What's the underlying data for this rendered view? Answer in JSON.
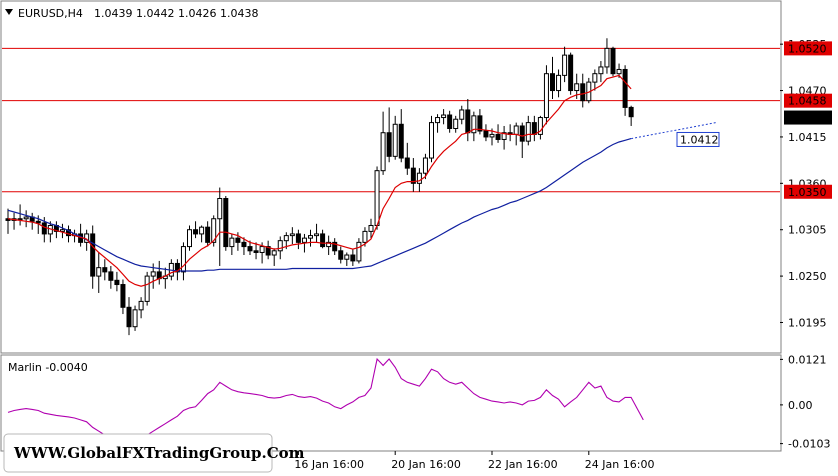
{
  "colors": {
    "background": "#ffffff",
    "bull_candle": "#ffffff",
    "bear_candle": "#000000",
    "wick": "#000000",
    "fast_ma": "#dd0000",
    "slow_ma": "#1020a0",
    "levels": "#e00000",
    "osc": "#b000b0",
    "grid_border": "#808080",
    "projection": "#2040d0"
  },
  "header": {
    "dropdown_icon": "triangle-down-icon",
    "symbol": "EURUSD,H4",
    "ohlc": "1.0439 1.0442 1.0426 1.0438"
  },
  "watermark": {
    "text": "WWW.GlobalFXTradingGroup.Com"
  },
  "oscillator": {
    "label": "Marlin -0.0040"
  },
  "chart_data": [
    {
      "type": "candlestick",
      "title": "EURUSD,H4",
      "ylim": [
        1.016,
        1.0575
      ],
      "y_ticks": [
        1.0195,
        1.025,
        1.0305,
        1.036,
        1.0415,
        1.047,
        1.0525
      ],
      "y_tick_labels": [
        "1.0195",
        "1.0250",
        "1.0305",
        "1.0360",
        "1.0415",
        "1.0470",
        "1.0525"
      ],
      "x_tick_labels": [
        {
          "index": 48,
          "label": "16 Jan 16:00"
        },
        {
          "index": 64,
          "label": "20 Jan 16:00"
        },
        {
          "index": 80,
          "label": "22 Jan 16:00"
        },
        {
          "index": 96,
          "label": "24 Jan 16:00"
        }
      ],
      "horizontal_levels": [
        {
          "value": 1.052,
          "label": "1.0520"
        },
        {
          "value": 1.0458,
          "label": "1.0458"
        },
        {
          "value": 1.035,
          "label": "1.0350"
        }
      ],
      "current_price": {
        "value": 1.0438,
        "label": "1.0438"
      },
      "slow_ma_projection": {
        "from_index": 106,
        "to_index": 117,
        "value_end": 1.0432,
        "label": "1.0412",
        "label_value": 1.0412
      },
      "candles": [
        [
          1.0318,
          1.033,
          1.03,
          1.0316
        ],
        [
          1.0316,
          1.0325,
          1.0305,
          1.0318
        ],
        [
          1.0318,
          1.0335,
          1.031,
          1.0318
        ],
        [
          1.0318,
          1.0328,
          1.0308,
          1.032
        ],
        [
          1.032,
          1.0325,
          1.0305,
          1.0315
        ],
        [
          1.0315,
          1.0322,
          1.03,
          1.0313
        ],
        [
          1.0313,
          1.032,
          1.029,
          1.03
        ],
        [
          1.03,
          1.0315,
          1.029,
          1.031
        ],
        [
          1.031,
          1.0315,
          1.0295,
          1.0303
        ],
        [
          1.0303,
          1.0312,
          1.0295,
          1.0305
        ],
        [
          1.0305,
          1.031,
          1.029,
          1.0298
        ],
        [
          1.0298,
          1.0305,
          1.029,
          1.03
        ],
        [
          1.03,
          1.0312,
          1.0285,
          1.029
        ],
        [
          1.029,
          1.0305,
          1.028,
          1.03
        ],
        [
          1.03,
          1.031,
          1.0235,
          1.025
        ],
        [
          1.025,
          1.0278,
          1.023,
          1.026
        ],
        [
          1.026,
          1.027,
          1.0245,
          1.0255
        ],
        [
          1.0255,
          1.0262,
          1.0235,
          1.0245
        ],
        [
          1.0245,
          1.0255,
          1.0232,
          1.024
        ],
        [
          1.024,
          1.0246,
          1.0205,
          1.0213
        ],
        [
          1.0213,
          1.0225,
          1.018,
          1.019
        ],
        [
          1.019,
          1.0215,
          1.0185,
          1.021
        ],
        [
          1.021,
          1.0225,
          1.02,
          1.022
        ],
        [
          1.022,
          1.0255,
          1.0215,
          1.025
        ],
        [
          1.025,
          1.0265,
          1.0235,
          1.0255
        ],
        [
          1.0255,
          1.0268,
          1.024,
          1.0247
        ],
        [
          1.0247,
          1.026,
          1.0235,
          1.025
        ],
        [
          1.025,
          1.027,
          1.0245,
          1.0265
        ],
        [
          1.0265,
          1.027,
          1.0245,
          1.0255
        ],
        [
          1.0255,
          1.029,
          1.0245,
          1.0285
        ],
        [
          1.0285,
          1.031,
          1.028,
          1.0305
        ],
        [
          1.0305,
          1.0315,
          1.0295,
          1.03
        ],
        [
          1.03,
          1.031,
          1.029,
          1.0308
        ],
        [
          1.0308,
          1.0315,
          1.0285,
          1.029
        ],
        [
          1.029,
          1.0322,
          1.0285,
          1.0318
        ],
        [
          1.0318,
          1.0355,
          1.0262,
          1.0342
        ],
        [
          1.0342,
          1.0345,
          1.028,
          1.0285
        ],
        [
          1.0285,
          1.03,
          1.0275,
          1.0295
        ],
        [
          1.0295,
          1.0302,
          1.028,
          1.029
        ],
        [
          1.029,
          1.0296,
          1.0275,
          1.0285
        ],
        [
          1.0285,
          1.0292,
          1.0275,
          1.028
        ],
        [
          1.028,
          1.029,
          1.027,
          1.0278
        ],
        [
          1.0278,
          1.029,
          1.0265,
          1.0285
        ],
        [
          1.0285,
          1.0292,
          1.027,
          1.0275
        ],
        [
          1.0275,
          1.0283,
          1.0262,
          1.028
        ],
        [
          1.028,
          1.0297,
          1.027,
          1.0292
        ],
        [
          1.0292,
          1.0302,
          1.0282,
          1.0298
        ],
        [
          1.0298,
          1.0308,
          1.0288,
          1.03
        ],
        [
          1.03,
          1.0305,
          1.0282,
          1.029
        ],
        [
          1.029,
          1.03,
          1.0278,
          1.0295
        ],
        [
          1.0295,
          1.0305,
          1.0285,
          1.0298
        ],
        [
          1.0298,
          1.0312,
          1.029,
          1.03
        ],
        [
          1.03,
          1.0305,
          1.0283,
          1.0285
        ],
        [
          1.0285,
          1.0298,
          1.0275,
          1.029
        ],
        [
          1.029,
          1.0295,
          1.0275,
          1.028
        ],
        [
          1.028,
          1.0285,
          1.0265,
          1.027
        ],
        [
          1.027,
          1.0278,
          1.0262,
          1.0275
        ],
        [
          1.0275,
          1.0282,
          1.0262,
          1.0268
        ],
        [
          1.0268,
          1.0295,
          1.0265,
          1.029
        ],
        [
          1.029,
          1.0308,
          1.0285,
          1.0303
        ],
        [
          1.0303,
          1.0318,
          1.0295,
          1.031
        ],
        [
          1.031,
          1.038,
          1.0305,
          1.0375
        ],
        [
          1.0375,
          1.0445,
          1.037,
          1.042
        ],
        [
          1.042,
          1.045,
          1.0385,
          1.0392
        ],
        [
          1.0392,
          1.044,
          1.0388,
          1.043
        ],
        [
          1.043,
          1.0448,
          1.0385,
          1.039
        ],
        [
          1.039,
          1.0408,
          1.037,
          1.0378
        ],
        [
          1.0378,
          1.039,
          1.035,
          1.036
        ],
        [
          1.036,
          1.0378,
          1.035,
          1.0372
        ],
        [
          1.0372,
          1.0395,
          1.0365,
          1.039
        ],
        [
          1.039,
          1.044,
          1.0385,
          1.0432
        ],
        [
          1.0432,
          1.0442,
          1.042,
          1.0438
        ],
        [
          1.0438,
          1.0448,
          1.043,
          1.0441
        ],
        [
          1.0441,
          1.0446,
          1.042,
          1.0425
        ],
        [
          1.0425,
          1.044,
          1.042,
          1.0436
        ],
        [
          1.0436,
          1.0452,
          1.043,
          1.0447
        ],
        [
          1.0447,
          1.046,
          1.041,
          1.042
        ],
        [
          1.042,
          1.0445,
          1.041,
          1.044
        ],
        [
          1.044,
          1.0448,
          1.0418,
          1.0422
        ],
        [
          1.0422,
          1.043,
          1.041,
          1.0415
        ],
        [
          1.0415,
          1.0425,
          1.0405,
          1.0418
        ],
        [
          1.0418,
          1.043,
          1.0408,
          1.0412
        ],
        [
          1.0412,
          1.0428,
          1.04,
          1.042
        ],
        [
          1.042,
          1.043,
          1.041,
          1.0418
        ],
        [
          1.0418,
          1.0432,
          1.0405,
          1.0428
        ],
        [
          1.0428,
          1.0432,
          1.039,
          1.041
        ],
        [
          1.041,
          1.044,
          1.0405,
          1.0432
        ],
        [
          1.0432,
          1.044,
          1.041,
          1.0418
        ],
        [
          1.0418,
          1.044,
          1.0412,
          1.0438
        ],
        [
          1.0438,
          1.05,
          1.043,
          1.049
        ],
        [
          1.049,
          1.051,
          1.046,
          1.047
        ],
        [
          1.047,
          1.0495,
          1.0462,
          1.0488
        ],
        [
          1.0488,
          1.0522,
          1.048,
          1.0512
        ],
        [
          1.0512,
          1.0515,
          1.0465,
          1.047
        ],
        [
          1.047,
          1.049,
          1.046,
          1.0478
        ],
        [
          1.0478,
          1.049,
          1.045,
          1.0458
        ],
        [
          1.0458,
          1.0485,
          1.0455,
          1.048
        ],
        [
          1.048,
          1.0495,
          1.047,
          1.049
        ],
        [
          1.049,
          1.0505,
          1.048,
          1.0498
        ],
        [
          1.0498,
          1.0532,
          1.049,
          1.052
        ],
        [
          1.052,
          1.0522,
          1.0487,
          1.049
        ],
        [
          1.049,
          1.0502,
          1.0485,
          1.0495
        ],
        [
          1.0495,
          1.05,
          1.044,
          1.045
        ],
        [
          1.045,
          1.0452,
          1.0428,
          1.0439
        ]
      ],
      "fast_ma": [
        1.0318,
        1.0317,
        1.0316,
        1.0315,
        1.0314,
        1.0312,
        1.0308,
        1.0306,
        1.0304,
        1.0302,
        1.03,
        1.0298,
        1.0296,
        1.0294,
        1.0285,
        1.0278,
        1.0272,
        1.0266,
        1.026,
        1.0252,
        1.0244,
        1.024,
        1.0238,
        1.024,
        1.0244,
        1.0247,
        1.025,
        1.0254,
        1.0256,
        1.0262,
        1.027,
        1.0276,
        1.0282,
        1.0286,
        1.0292,
        1.0302,
        1.0302,
        1.03,
        1.0298,
        1.0294,
        1.029,
        1.0288,
        1.0286,
        1.0284,
        1.0282,
        1.0283,
        1.0285,
        1.0287,
        1.0288,
        1.0289,
        1.029,
        1.029,
        1.0289,
        1.0289,
        1.0288,
        1.0286,
        1.0284,
        1.0282,
        1.0284,
        1.0288,
        1.0294,
        1.031,
        1.033,
        1.0342,
        1.0355,
        1.036,
        1.0362,
        1.0362,
        1.0363,
        1.0368,
        1.038,
        1.039,
        1.0398,
        1.0404,
        1.041,
        1.0418,
        1.042,
        1.0424,
        1.0424,
        1.0423,
        1.0422,
        1.042,
        1.0419,
        1.0418,
        1.0418,
        1.0416,
        1.0418,
        1.0418,
        1.0422,
        1.0432,
        1.044,
        1.0448,
        1.0458,
        1.0462,
        1.0465,
        1.0466,
        1.0468,
        1.0472,
        1.0476,
        1.0484,
        1.0486,
        1.0488,
        1.048,
        1.0472
      ],
      "slow_ma": [
        1.0328,
        1.0326,
        1.0324,
        1.0322,
        1.032,
        1.0318,
        1.0315,
        1.0312,
        1.031,
        1.0307,
        1.0304,
        1.03,
        1.0297,
        1.0293,
        1.0289,
        1.0285,
        1.0281,
        1.0277,
        1.0273,
        1.027,
        1.0267,
        1.0264,
        1.0262,
        1.0261,
        1.026,
        1.0259,
        1.0258,
        1.0257,
        1.0256,
        1.0256,
        1.0256,
        1.0256,
        1.0256,
        1.0257,
        1.0257,
        1.0258,
        1.0258,
        1.0258,
        1.0258,
        1.0258,
        1.0258,
        1.0258,
        1.0258,
        1.0258,
        1.0258,
        1.0258,
        1.0258,
        1.0259,
        1.0259,
        1.0259,
        1.0259,
        1.0259,
        1.0259,
        1.0259,
        1.0259,
        1.0259,
        1.0259,
        1.0259,
        1.026,
        1.0261,
        1.0262,
        1.0265,
        1.0268,
        1.0271,
        1.0274,
        1.0277,
        1.028,
        1.0283,
        1.0286,
        1.0289,
        1.0293,
        1.0297,
        1.0301,
        1.0305,
        1.0309,
        1.0313,
        1.0316,
        1.032,
        1.0323,
        1.0326,
        1.0329,
        1.0331,
        1.0334,
        1.0337,
        1.0339,
        1.0342,
        1.0345,
        1.0348,
        1.0351,
        1.0355,
        1.036,
        1.0365,
        1.037,
        1.0375,
        1.038,
        1.0385,
        1.0389,
        1.0393,
        1.0397,
        1.0402,
        1.0406,
        1.0409,
        1.0411,
        1.0413
      ]
    },
    {
      "type": "line",
      "title": "Marlin -0.0040",
      "ylim": [
        -0.012,
        0.013
      ],
      "y_ticks": [
        0.0121,
        0.0,
        -0.0103
      ],
      "y_tick_labels": [
        "0.0121",
        "0.00",
        "-0.0103"
      ],
      "series": [
        {
          "name": "Marlin",
          "values": [
            -0.002,
            -0.0015,
            -0.0012,
            -0.001,
            -0.0012,
            -0.0015,
            -0.0022,
            -0.0025,
            -0.0028,
            -0.003,
            -0.0032,
            -0.0035,
            -0.004,
            -0.0045,
            -0.006,
            -0.007,
            -0.008,
            -0.0092,
            -0.0098,
            -0.0104,
            -0.0104,
            -0.0098,
            -0.009,
            -0.008,
            -0.007,
            -0.006,
            -0.005,
            -0.004,
            -0.003,
            -0.0015,
            -0.0008,
            -0.0005,
            0.0012,
            0.003,
            0.004,
            0.006,
            0.005,
            0.004,
            0.0035,
            0.0032,
            0.003,
            0.0028,
            0.0025,
            0.002,
            0.0018,
            0.002,
            0.0025,
            0.0028,
            0.0022,
            0.002,
            0.0022,
            0.0018,
            0.001,
            0.0005,
            -0.0005,
            -0.001,
            0.0,
            0.0008,
            0.002,
            0.0025,
            0.0045,
            0.0122,
            0.0105,
            0.0122,
            0.01,
            0.007,
            0.006,
            0.0055,
            0.005,
            0.007,
            0.0095,
            0.0088,
            0.007,
            0.006,
            0.0055,
            0.006,
            0.0045,
            0.003,
            0.002,
            0.0015,
            0.001,
            0.0008,
            0.0005,
            0.0008,
            0.0005,
            0.0,
            0.001,
            0.0012,
            0.002,
            0.004,
            0.0025,
            0.0015,
            -0.0005,
            0.0008,
            0.002,
            0.004,
            0.006,
            0.0045,
            0.005,
            0.002,
            0.001,
            0.0008,
            0.002,
            0.002,
            -0.001,
            -0.004
          ]
        }
      ]
    }
  ]
}
